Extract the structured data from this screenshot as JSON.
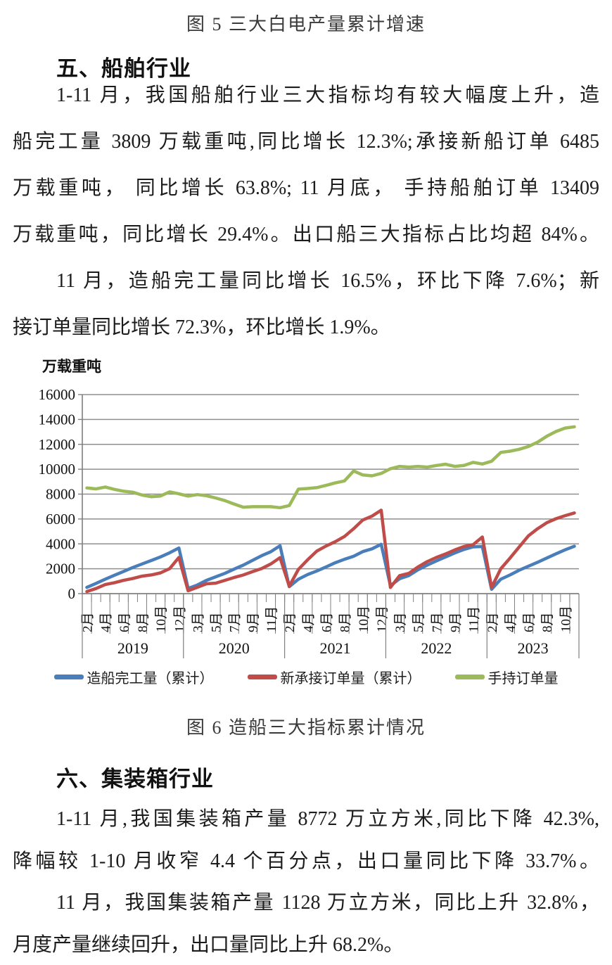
{
  "page": {
    "figure5_caption": "图 5 三大白电产量累计增速",
    "figure6_caption": "图 6 造船三大指标累计情况",
    "ship_section": {
      "heading": "五、船舶行业",
      "para1_lines": [
        "1-11 月，我国船舶行业三大指标均有较大幅度上升，造",
        "船完工量 3809 万载重吨,同比增长 12.3%;承接新船订单 6485",
        "万载重吨， 同比增长 63.8%; 11 月底， 手持船舶订单 13409",
        "万载重吨，同比增长 29.4%。出口船三大指标占比均超 84%。"
      ],
      "para2_lines": [
        "11 月，造船完工量同比增长 16.5%，环比下降 7.6%；新",
        "接订单量同比增长 72.3%，环比增长 1.9%。"
      ]
    },
    "container_section": {
      "heading": "六、集装箱行业",
      "para1_lines": [
        "1-11 月,我国集装箱产量 8772 万立方米,同比下降 42.3%,",
        "降幅较 1-10 月收窄 4.4 个百分点，出口量同比下降 33.7%。"
      ],
      "para2_lines": [
        "11 月，我国集装箱产量 1128 万立方米，同比上升 32.8%，",
        "月度产量继续回升，出口量同比上升 68.2%。"
      ]
    }
  },
  "chart_data": {
    "type": "line",
    "title": "图 6 造船三大指标累计情况",
    "unit_label": "万载重吨",
    "xlabel": "",
    "ylabel": "万载重吨",
    "ylim": [
      0,
      16000
    ],
    "yticks": [
      0,
      2000,
      4000,
      6000,
      8000,
      10000,
      12000,
      14000,
      16000
    ],
    "grid": true,
    "legend_position": "bottom",
    "colors": {
      "grid": "#8f8f8f",
      "axis": "#7f7f7f",
      "tick_text": "#111111"
    },
    "month_labels": [
      "2月",
      "",
      "4月",
      "",
      "6月",
      "",
      "8月",
      "",
      "10月",
      "",
      "12月",
      "",
      "3月",
      "",
      "5月",
      "",
      "7月",
      "",
      "9月",
      "",
      "11月",
      "",
      "2月",
      "",
      "4月",
      "",
      "6月",
      "",
      "8月",
      "",
      "10月",
      "",
      "12月",
      "",
      "3月",
      "",
      "5月",
      "",
      "7月",
      "",
      "9月",
      "",
      "11月",
      "",
      "2月",
      "",
      "4月",
      "",
      "6月",
      "",
      "8月",
      "",
      "10月",
      ""
    ],
    "year_groups": [
      {
        "label": "2019",
        "count": 11
      },
      {
        "label": "2020",
        "count": 11
      },
      {
        "label": "2021",
        "count": 11
      },
      {
        "label": "2022",
        "count": 11
      },
      {
        "label": "2023",
        "count": 10
      }
    ],
    "series": [
      {
        "name": "造船完工量（累计）",
        "color": "#4a7ebb",
        "values": [
          505,
          825,
          1165,
          1480,
          1785,
          2105,
          2385,
          2665,
          2950,
          3285,
          3672,
          420,
          690,
          1070,
          1350,
          1630,
          1970,
          2290,
          2670,
          3050,
          3370,
          3853,
          560,
          1160,
          1530,
          1820,
          2140,
          2480,
          2760,
          3000,
          3380,
          3600,
          3970,
          640,
          1200,
          1450,
          1915,
          2290,
          2630,
          2950,
          3270,
          3550,
          3760,
          3786,
          350,
          1160,
          1500,
          1880,
          2200,
          2520,
          2860,
          3200,
          3520,
          3809
        ]
      },
      {
        "name": "新承接订单量（累计）",
        "color": "#bf4c49",
        "values": [
          170,
          415,
          730,
          880,
          1070,
          1220,
          1410,
          1505,
          1670,
          2010,
          2907,
          230,
          510,
          790,
          845,
          1070,
          1295,
          1500,
          1765,
          2010,
          2385,
          2893,
          600,
          1950,
          2720,
          3420,
          3830,
          4170,
          4590,
          5220,
          5920,
          6230,
          6707,
          500,
          1450,
          1630,
          2140,
          2570,
          2910,
          3190,
          3510,
          3790,
          3940,
          4552,
          500,
          2000,
          2850,
          3750,
          4640,
          5220,
          5700,
          6020,
          6270,
          6485
        ]
      },
      {
        "name": "手持订单量",
        "color": "#9cba59",
        "values": [
          8500,
          8420,
          8570,
          8380,
          8230,
          8150,
          7920,
          7790,
          7850,
          8180,
          8020,
          7840,
          7960,
          7870,
          7690,
          7480,
          7200,
          6950,
          6990,
          6990,
          6990,
          6910,
          7080,
          8400,
          8450,
          8520,
          8700,
          8900,
          9060,
          9860,
          9540,
          9470,
          9660,
          10040,
          10230,
          10170,
          10230,
          10170,
          10300,
          10400,
          10230,
          10300,
          10550,
          10420,
          10640,
          11350,
          11450,
          11600,
          11830,
          12170,
          12650,
          13030,
          13310,
          13409
        ]
      }
    ]
  }
}
